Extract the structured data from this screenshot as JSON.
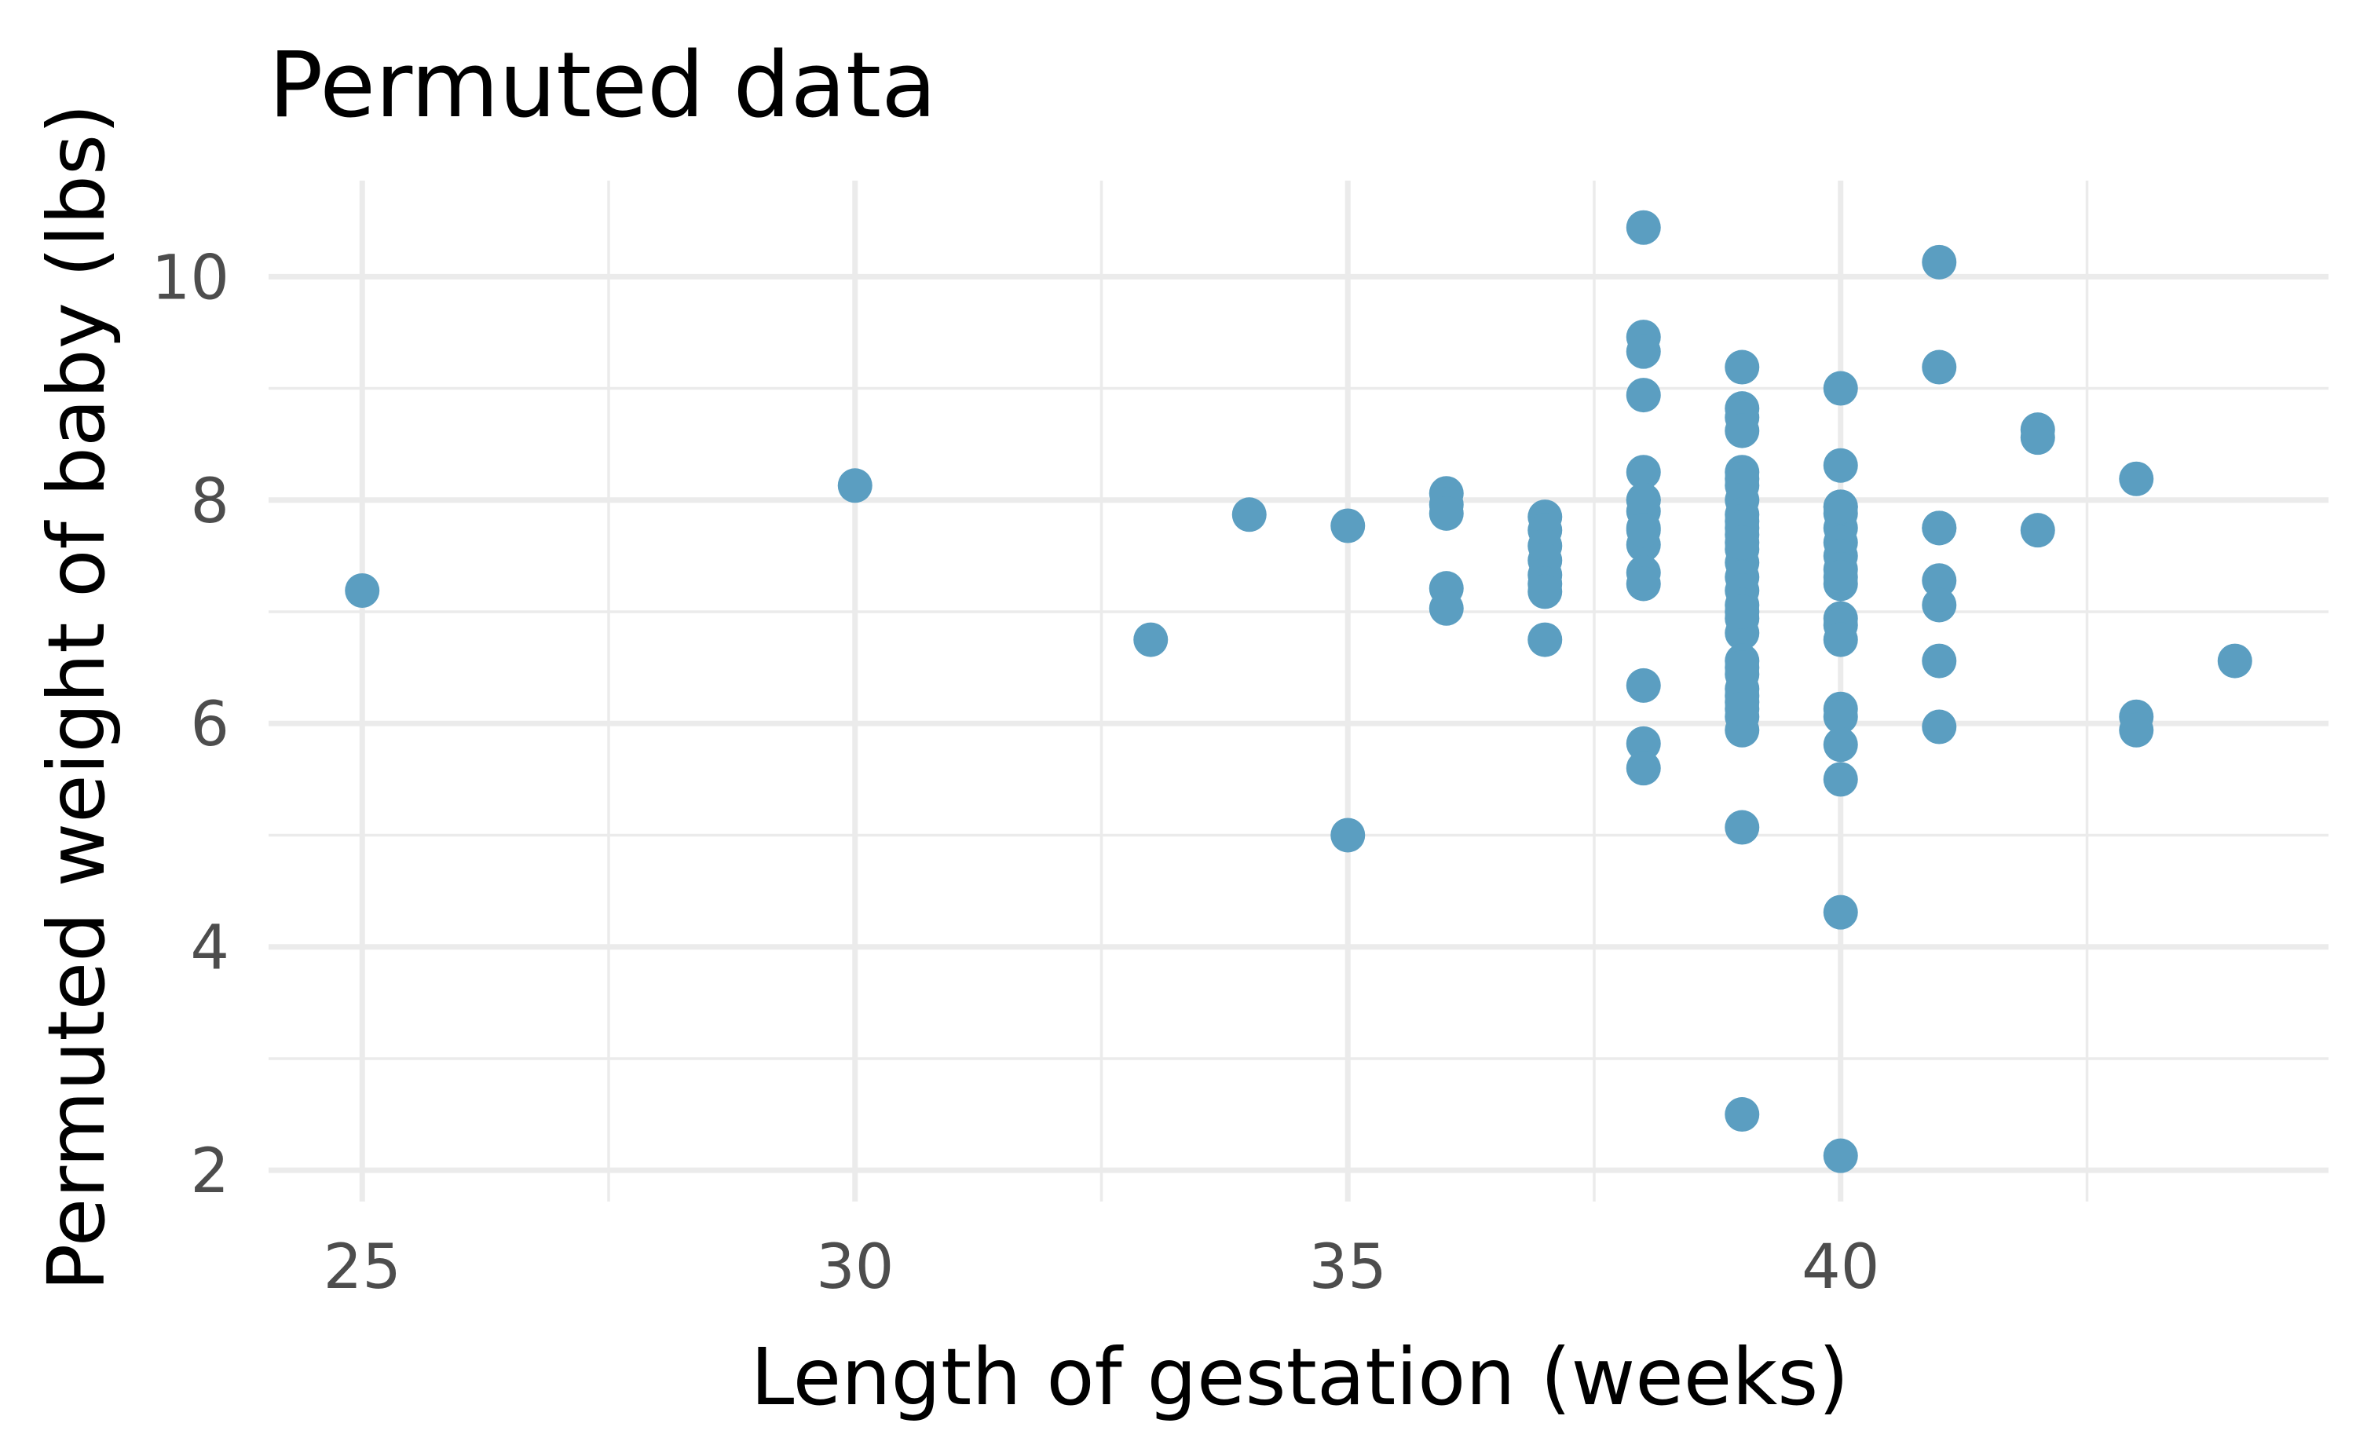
{
  "chart_data": {
    "type": "scatter",
    "title": "Permuted data",
    "xlabel": "Length of gestation (weeks)",
    "ylabel": "Permuted weight of baby (lbs)",
    "xlim": [
      24.05,
      44.95
    ],
    "ylim": [
      1.72,
      10.86
    ],
    "x_ticks": [
      25,
      30,
      35,
      40
    ],
    "x_minor_ticks": [
      27.5,
      32.5,
      37.5,
      42.5
    ],
    "y_ticks": [
      2,
      4,
      6,
      8,
      10
    ],
    "y_minor_ticks": [
      3,
      5,
      7,
      9
    ],
    "grid": true,
    "point_color": "#5b9ec1",
    "x": [
      25,
      30,
      33,
      34,
      35,
      35,
      36,
      36,
      36,
      36,
      36,
      37,
      37,
      37,
      37,
      37,
      37,
      37,
      37,
      38,
      38,
      38,
      38,
      38,
      38,
      38,
      38,
      38,
      38,
      38,
      38,
      38,
      38,
      38,
      38,
      39,
      39,
      39,
      39,
      39,
      39,
      39,
      39,
      39,
      39,
      39,
      39,
      39,
      39,
      39,
      39,
      39,
      39,
      39,
      39,
      39,
      39,
      39,
      39,
      39,
      39,
      39,
      39,
      39,
      39,
      39,
      39,
      40,
      40,
      40,
      40,
      40,
      40,
      40,
      40,
      40,
      40,
      40,
      40,
      40,
      40,
      40,
      40,
      40,
      40,
      40,
      40,
      41,
      41,
      41,
      41,
      41,
      41,
      41,
      41,
      42,
      42,
      42,
      43,
      43,
      43,
      44
    ],
    "y": [
      7.19,
      8.13,
      6.75,
      7.87,
      7.77,
      5.0,
      8.06,
      7.96,
      7.88,
      7.21,
      7.03,
      7.85,
      7.73,
      7.59,
      7.46,
      7.33,
      7.25,
      7.18,
      6.75,
      10.44,
      9.46,
      9.33,
      8.94,
      8.25,
      8.0,
      7.9,
      7.75,
      7.6,
      7.35,
      7.25,
      6.34,
      5.82,
      5.6,
      8.0,
      7.73,
      9.19,
      8.82,
      8.74,
      8.62,
      8.25,
      8.19,
      8.13,
      8.0,
      7.87,
      7.81,
      7.69,
      7.56,
      7.44,
      7.31,
      7.19,
      7.06,
      6.94,
      6.81,
      6.56,
      6.44,
      6.31,
      6.19,
      6.06,
      5.94,
      5.07,
      2.5,
      7.75,
      7.62,
      7.0,
      6.5,
      6.25,
      6.13,
      9.0,
      8.31,
      7.94,
      7.88,
      7.75,
      7.62,
      7.5,
      7.38,
      7.25,
      6.94,
      6.88,
      6.75,
      6.13,
      6.06,
      5.81,
      5.5,
      4.31,
      2.13,
      7.94,
      7.31,
      10.13,
      9.19,
      7.75,
      7.28,
      7.06,
      6.56,
      5.97,
      7.75,
      8.63,
      8.56,
      7.73,
      8.19,
      6.06,
      5.94,
      6.56
    ]
  }
}
